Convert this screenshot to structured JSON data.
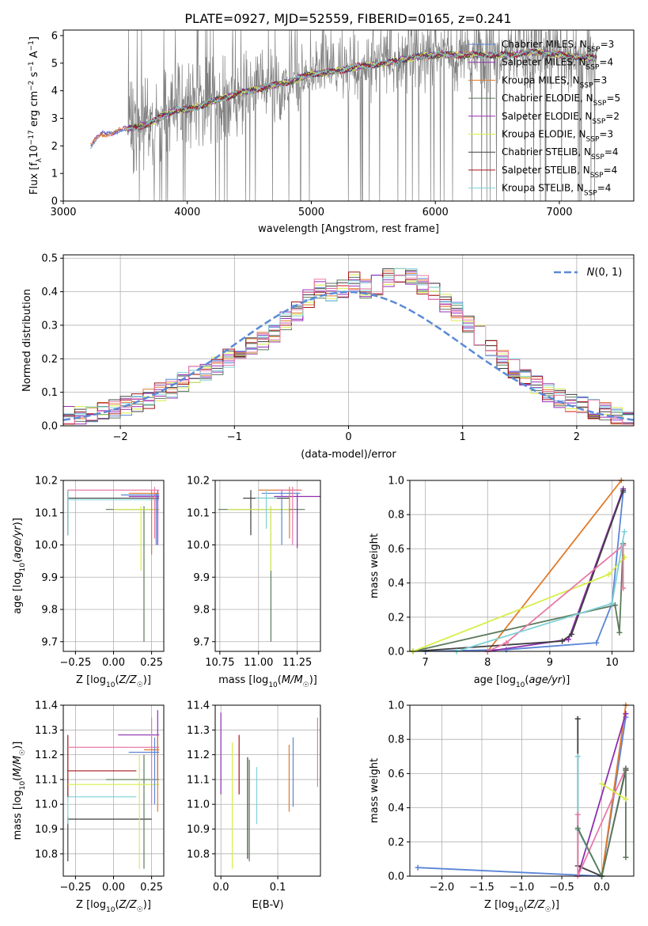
{
  "figure": {
    "title": "PLATE=0927, MJD=52559, FIBERID=0165, z=0.241"
  },
  "series_colors": {
    "Chabrier MILES": "#5b84d6",
    "Salpeter MILES": "#8f2fb0",
    "Kroupa MILES": "#e07b2c",
    "Chabrier ELODIE": "#5b7a5b",
    "Salpeter ELODIE": "#9b2fb8",
    "Kroupa ELODIE": "#d8ee4c",
    "Chabrier STELIB": "#3f3f3f",
    "Salpeter STELIB": "#a3161b",
    "Kroupa STELIB": "#7fd1d6",
    "data": "#808080",
    "normal": "#5b8ad6",
    "pink": "#e87aa8"
  },
  "chart_data": [
    {
      "id": "spectrum",
      "type": "line",
      "title": "PLATE=0927, MJD=52559, FIBERID=0165, z=0.241",
      "xlabel": "wavelength [Angstrom, rest frame]",
      "ylabel": "Flux [f_λ 10^-17 erg cm^-2 s^-1 A^-1]",
      "xlim": [
        3000,
        7600
      ],
      "ylim": [
        0,
        6.2
      ],
      "xticks": [
        3000,
        4000,
        5000,
        6000,
        7000
      ],
      "yticks": [
        0,
        1,
        2,
        3,
        4,
        5,
        6
      ],
      "legend_position": "top-right",
      "legend": [
        {
          "name": "Chabrier MILES",
          "nssp": "3"
        },
        {
          "name": "Salpeter MILES",
          "nssp": "4"
        },
        {
          "name": "Kroupa MILES",
          "nssp": "3"
        },
        {
          "name": "Chabrier ELODIE",
          "nssp": "5"
        },
        {
          "name": "Salpeter ELODIE",
          "nssp": "2"
        },
        {
          "name": "Kroupa ELODIE",
          "nssp": "3"
        },
        {
          "name": "Chabrier STELIB",
          "nssp": "4"
        },
        {
          "name": "Salpeter STELIB",
          "nssp": "4"
        },
        {
          "name": "Kroupa STELIB",
          "nssp": "4"
        }
      ],
      "model_continuum": [
        [
          3220,
          2.0
        ],
        [
          3300,
          2.4
        ],
        [
          3400,
          2.5
        ],
        [
          3500,
          2.6
        ],
        [
          3600,
          2.7
        ],
        [
          3700,
          2.8
        ],
        [
          3800,
          3.1
        ],
        [
          3900,
          3.3
        ],
        [
          4000,
          3.3
        ],
        [
          4200,
          3.6
        ],
        [
          4400,
          3.9
        ],
        [
          4600,
          4.1
        ],
        [
          4800,
          4.3
        ],
        [
          5000,
          4.6
        ],
        [
          5200,
          4.7
        ],
        [
          5400,
          4.9
        ],
        [
          5600,
          5.0
        ],
        [
          5800,
          5.2
        ],
        [
          6000,
          5.3
        ],
        [
          6200,
          5.3
        ],
        [
          6400,
          5.3
        ],
        [
          6600,
          5.3
        ],
        [
          6800,
          5.4
        ],
        [
          7000,
          5.3
        ],
        [
          7200,
          5.2
        ],
        [
          7300,
          5.2
        ]
      ]
    },
    {
      "id": "residuals",
      "type": "histogram",
      "xlabel": "(data-model)/error",
      "ylabel": "Normed distribution",
      "xlim": [
        -2.5,
        2.5
      ],
      "ylim": [
        0,
        0.51
      ],
      "xticks": [
        -2,
        -1,
        0,
        1,
        2
      ],
      "yticks": [
        0.0,
        0.1,
        0.2,
        0.3,
        0.4,
        0.5
      ],
      "grid": true,
      "legend_position": "top-right",
      "legend": "N(0,1)",
      "bin_width": 0.1,
      "bin_start": -2.5,
      "histogram": [
        0.03,
        0.03,
        0.03,
        0.04,
        0.05,
        0.06,
        0.07,
        0.08,
        0.1,
        0.11,
        0.13,
        0.15,
        0.16,
        0.18,
        0.2,
        0.22,
        0.24,
        0.25,
        0.28,
        0.31,
        0.34,
        0.38,
        0.41,
        0.4,
        0.41,
        0.43,
        0.41,
        0.42,
        0.44,
        0.45,
        0.44,
        0.42,
        0.4,
        0.37,
        0.34,
        0.3,
        0.27,
        0.23,
        0.2,
        0.17,
        0.14,
        0.12,
        0.1,
        0.08,
        0.07,
        0.06,
        0.05,
        0.04,
        0.03,
        0.02
      ]
    },
    {
      "id": "age-vs-Z",
      "type": "scatter",
      "xlabel": "Z [log10(Z/Z☉)]",
      "ylabel": "age [log10(age/yr)]",
      "xlim": [
        -0.33,
        0.33
      ],
      "ylim": [
        9.67,
        10.2
      ],
      "xticks": [
        -0.25,
        0.0,
        0.25
      ],
      "yticks": [
        9.7,
        9.8,
        9.9,
        10.0,
        10.1,
        10.2
      ],
      "grid": true,
      "points": [
        {
          "x": -0.3,
          "y": 10.145,
          "xe": [
            -0.3,
            0.3
          ],
          "ye": [
            10.03,
            10.17
          ],
          "series": "Chabrier STELIB"
        },
        {
          "x": -0.3,
          "y": 10.14,
          "xe": [
            -0.3,
            0.3
          ],
          "ye": [
            10.03,
            10.17
          ],
          "series": "Kroupa STELIB"
        },
        {
          "x": 0.2,
          "y": 10.11,
          "xe": [
            -0.05,
            0.3
          ],
          "ye": [
            9.7,
            10.12
          ],
          "series": "Chabrier ELODIE"
        },
        {
          "x": 0.18,
          "y": 10.11,
          "xe": [
            0.0,
            0.3
          ],
          "ye": [
            9.92,
            10.12
          ],
          "series": "Kroupa ELODIE"
        },
        {
          "x": 0.29,
          "y": 10.15,
          "xe": [
            0.1,
            0.3
          ],
          "ye": [
            10.0,
            10.17
          ],
          "series": "Salpeter MILES"
        },
        {
          "x": 0.27,
          "y": 10.17,
          "xe": [
            -0.3,
            0.3
          ],
          "ye": [
            10.02,
            10.18
          ],
          "series": "pink"
        },
        {
          "x": 0.25,
          "y": 10.16,
          "xe": [
            0.1,
            0.3
          ],
          "ye": [
            9.97,
            10.17
          ],
          "series": "Kroupa MILES"
        },
        {
          "x": 0.28,
          "y": 10.155,
          "xe": [
            0.05,
            0.3
          ],
          "ye": [
            10.0,
            10.16
          ],
          "series": "Chabrier MILES"
        }
      ]
    },
    {
      "id": "age-vs-mass",
      "type": "scatter",
      "xlabel": "mass [log10(M/M☉)]",
      "xlim": [
        10.72,
        11.4
      ],
      "ylim": [
        9.67,
        10.2
      ],
      "xticks": [
        10.75,
        11.0,
        11.25
      ],
      "yticks": [
        9.7,
        9.8,
        9.9,
        10.0,
        10.1,
        10.2
      ],
      "grid": true,
      "points": [
        {
          "x": 11.08,
          "y": 10.11,
          "xe": [
            10.74,
            11.3
          ],
          "ye": [
            9.7,
            10.12
          ],
          "series": "Chabrier ELODIE"
        },
        {
          "x": 10.95,
          "y": 10.145,
          "xe": [
            10.9,
            11.2
          ],
          "ye": [
            10.03,
            10.17
          ],
          "series": "Chabrier STELIB"
        },
        {
          "x": 11.08,
          "y": 10.11,
          "xe": [
            10.8,
            11.2
          ],
          "ye": [
            9.92,
            10.12
          ],
          "series": "Kroupa ELODIE"
        },
        {
          "x": 11.25,
          "y": 10.15,
          "xe": [
            11.1,
            11.4
          ],
          "ye": [
            9.99,
            10.16
          ],
          "series": "Salpeter MILES"
        },
        {
          "x": 11.2,
          "y": 10.17,
          "xe": [
            11.0,
            11.28
          ],
          "ye": [
            10.02,
            10.18
          ],
          "series": "Kroupa MILES"
        },
        {
          "x": 11.15,
          "y": 10.16,
          "xe": [
            11.02,
            11.27
          ],
          "ye": [
            10.0,
            10.17
          ],
          "series": "Chabrier MILES"
        },
        {
          "x": 11.22,
          "y": 10.17,
          "xe": [
            11.12,
            11.27
          ],
          "ye": [
            10.0,
            10.18
          ],
          "series": "pink"
        },
        {
          "x": 11.05,
          "y": 10.145,
          "xe": [
            10.98,
            11.12
          ],
          "ye": [
            10.05,
            10.17
          ],
          "series": "Kroupa STELIB"
        }
      ]
    },
    {
      "id": "massweight-vs-age",
      "type": "line",
      "xlabel": "age [log10(age/yr)]",
      "ylabel": "mass weight",
      "xlim": [
        6.75,
        10.35
      ],
      "ylim": [
        0,
        1
      ],
      "xticks": [
        7,
        8,
        9,
        10
      ],
      "yticks": [
        0.0,
        0.2,
        0.4,
        0.6,
        0.8,
        1.0
      ],
      "grid": true,
      "series": [
        {
          "name": "Kroupa MILES",
          "points": [
            [
              6.8,
              0.0
            ],
            [
              8.0,
              0.0
            ],
            [
              10.15,
              1.0
            ]
          ]
        },
        {
          "name": "Chabrier MILES",
          "points": [
            [
              7.0,
              0.0
            ],
            [
              8.3,
              0.01
            ],
            [
              9.75,
              0.05
            ],
            [
              10.0,
              0.28
            ],
            [
              10.18,
              0.93
            ]
          ]
        },
        {
          "name": "Salpeter MILES",
          "points": [
            [
              8.0,
              0.0
            ],
            [
              9.3,
              0.07
            ],
            [
              10.18,
              0.95
            ]
          ]
        },
        {
          "name": "Chabrier STELIB",
          "points": [
            [
              6.8,
              0.0
            ],
            [
              9.2,
              0.06
            ],
            [
              9.35,
              0.1
            ],
            [
              10.18,
              0.94
            ]
          ]
        },
        {
          "name": "Chabrier ELODIE",
          "points": [
            [
              6.8,
              0.0
            ],
            [
              10.05,
              0.27
            ],
            [
              10.12,
              0.11
            ],
            [
              10.18,
              0.63
            ]
          ]
        },
        {
          "name": "Kroupa ELODIE",
          "points": [
            [
              6.8,
              0.0
            ],
            [
              9.95,
              0.45
            ],
            [
              10.2,
              0.55
            ]
          ]
        },
        {
          "name": "pink",
          "points": [
            [
              8.0,
              0.0
            ],
            [
              8.3,
              0.05
            ],
            [
              10.18,
              0.62
            ],
            [
              10.18,
              0.37
            ]
          ]
        },
        {
          "name": "Kroupa STELIB",
          "points": [
            [
              7.5,
              0.0
            ],
            [
              10.0,
              0.28
            ],
            [
              10.2,
              0.7
            ]
          ]
        }
      ]
    },
    {
      "id": "mass-vs-Z",
      "type": "scatter",
      "xlabel": "Z [log10(Z/Z☉)]",
      "ylabel": "mass [log10(M/M☉)]",
      "xlim": [
        -0.33,
        0.33
      ],
      "ylim": [
        10.71,
        11.4
      ],
      "xticks": [
        -0.25,
        0.0,
        0.25
      ],
      "yticks": [
        10.8,
        10.9,
        11.0,
        11.1,
        11.2,
        11.3,
        11.4
      ],
      "grid": true,
      "points": [
        {
          "x": -0.3,
          "y": 10.94,
          "xe": [
            -0.3,
            0.25
          ],
          "ye": [
            10.77,
            10.95
          ],
          "series": "Chabrier STELIB"
        },
        {
          "x": -0.3,
          "y": 11.03,
          "xe": [
            -0.3,
            0.15
          ],
          "ye": [
            10.92,
            11.1
          ],
          "series": "Kroupa STELIB"
        },
        {
          "x": -0.3,
          "y": 11.135,
          "xe": [
            -0.3,
            0.15
          ],
          "ye": [
            11.03,
            11.28
          ],
          "series": "Salpeter STELIB"
        },
        {
          "x": 0.2,
          "y": 11.1,
          "xe": [
            -0.05,
            0.3
          ],
          "ye": [
            10.74,
            11.2
          ],
          "series": "Chabrier ELODIE"
        },
        {
          "x": 0.17,
          "y": 11.08,
          "xe": [
            -0.3,
            0.3
          ],
          "ye": [
            10.74,
            11.2
          ],
          "series": "Kroupa ELODIE"
        },
        {
          "x": 0.29,
          "y": 11.28,
          "xe": [
            0.03,
            0.3
          ],
          "ye": [
            11.1,
            11.38
          ],
          "series": "Salpeter MILES"
        },
        {
          "x": 0.25,
          "y": 11.23,
          "xe": [
            -0.3,
            0.3
          ],
          "ye": [
            11.0,
            11.35
          ],
          "series": "pink"
        },
        {
          "x": 0.29,
          "y": 11.22,
          "xe": [
            0.2,
            0.3
          ],
          "ye": [
            10.97,
            11.28
          ],
          "series": "Kroupa MILES"
        },
        {
          "x": 0.27,
          "y": 11.21,
          "xe": [
            0.1,
            0.3
          ],
          "ye": [
            11.0,
            11.27
          ],
          "series": "Chabrier MILES"
        }
      ]
    },
    {
      "id": "mass-vs-EBV",
      "type": "scatter",
      "xlabel": "E(B-V)",
      "xlim": [
        -0.01,
        0.175
      ],
      "ylim": [
        10.71,
        11.4
      ],
      "xticks": [
        0.0,
        0.1
      ],
      "yticks": [
        10.8,
        10.9,
        11.0,
        11.1,
        11.2,
        11.3,
        11.4
      ],
      "grid": true,
      "points": [
        {
          "x": 0.0,
          "y": 11.2,
          "ye": [
            11.04,
            11.37
          ],
          "series": "Salpeter MILES"
        },
        {
          "x": 0.02,
          "y": 11.0,
          "ye": [
            10.74,
            11.25
          ],
          "series": "Kroupa ELODIE"
        },
        {
          "x": 0.032,
          "y": 11.15,
          "ye": [
            11.04,
            11.28
          ],
          "series": "Salpeter STELIB"
        },
        {
          "x": 0.047,
          "y": 11.0,
          "ye": [
            10.78,
            11.19
          ],
          "series": "Chabrier STELIB"
        },
        {
          "x": 0.05,
          "y": 11.0,
          "ye": [
            10.77,
            11.18
          ],
          "series": "Chabrier ELODIE"
        },
        {
          "x": 0.063,
          "y": 11.05,
          "ye": [
            10.92,
            11.15
          ],
          "series": "Kroupa STELIB"
        },
        {
          "x": 0.12,
          "y": 11.1,
          "ye": [
            10.97,
            11.24
          ],
          "series": "Kroupa MILES"
        },
        {
          "x": 0.127,
          "y": 11.12,
          "ye": [
            10.99,
            11.27
          ],
          "series": "Chabrier MILES"
        },
        {
          "x": 0.17,
          "y": 11.2,
          "ye": [
            11.07,
            11.35
          ],
          "series": "pink"
        }
      ]
    },
    {
      "id": "massweight-vs-Z",
      "type": "line",
      "xlabel": "Z [log10(Z/Z☉)]",
      "ylabel": "mass weight",
      "xlim": [
        -2.4,
        0.4
      ],
      "ylim": [
        0,
        1
      ],
      "xticks": [
        -2.0,
        -1.5,
        -1.0,
        -0.5,
        0.0
      ],
      "yticks": [
        0.0,
        0.2,
        0.4,
        0.6,
        0.8,
        1.0
      ],
      "grid": true,
      "series": [
        {
          "name": "Chabrier MILES",
          "points": [
            [
              -2.3,
              0.05
            ],
            [
              0.0,
              0.0
            ],
            [
              0.3,
              0.93
            ]
          ]
        },
        {
          "name": "Kroupa MILES",
          "points": [
            [
              0.0,
              0.0
            ],
            [
              0.3,
              1.0
            ]
          ]
        },
        {
          "name": "Salpeter MILES",
          "points": [
            [
              -0.3,
              0.0
            ],
            [
              0.3,
              0.95
            ]
          ]
        },
        {
          "name": "Chabrier STELIB",
          "points": [
            [
              -0.3,
              0.92
            ],
            [
              -0.3,
              0.06
            ],
            [
              0.0,
              0.0
            ],
            [
              0.3,
              0.62
            ]
          ]
        },
        {
          "name": "Kroupa STELIB",
          "points": [
            [
              -0.3,
              0.7
            ],
            [
              -0.3,
              0.27
            ],
            [
              0.0,
              0.0
            ]
          ]
        },
        {
          "name": "pink",
          "points": [
            [
              -0.3,
              0.36
            ],
            [
              -0.3,
              0.0
            ],
            [
              0.3,
              0.63
            ]
          ]
        },
        {
          "name": "Chabrier ELODIE",
          "points": [
            [
              -0.3,
              0.28
            ],
            [
              0.0,
              0.0
            ],
            [
              0.3,
              0.63
            ],
            [
              0.3,
              0.11
            ]
          ]
        },
        {
          "name": "Kroupa ELODIE",
          "points": [
            [
              0.0,
              0.54
            ],
            [
              0.3,
              0.45
            ]
          ]
        }
      ]
    }
  ]
}
